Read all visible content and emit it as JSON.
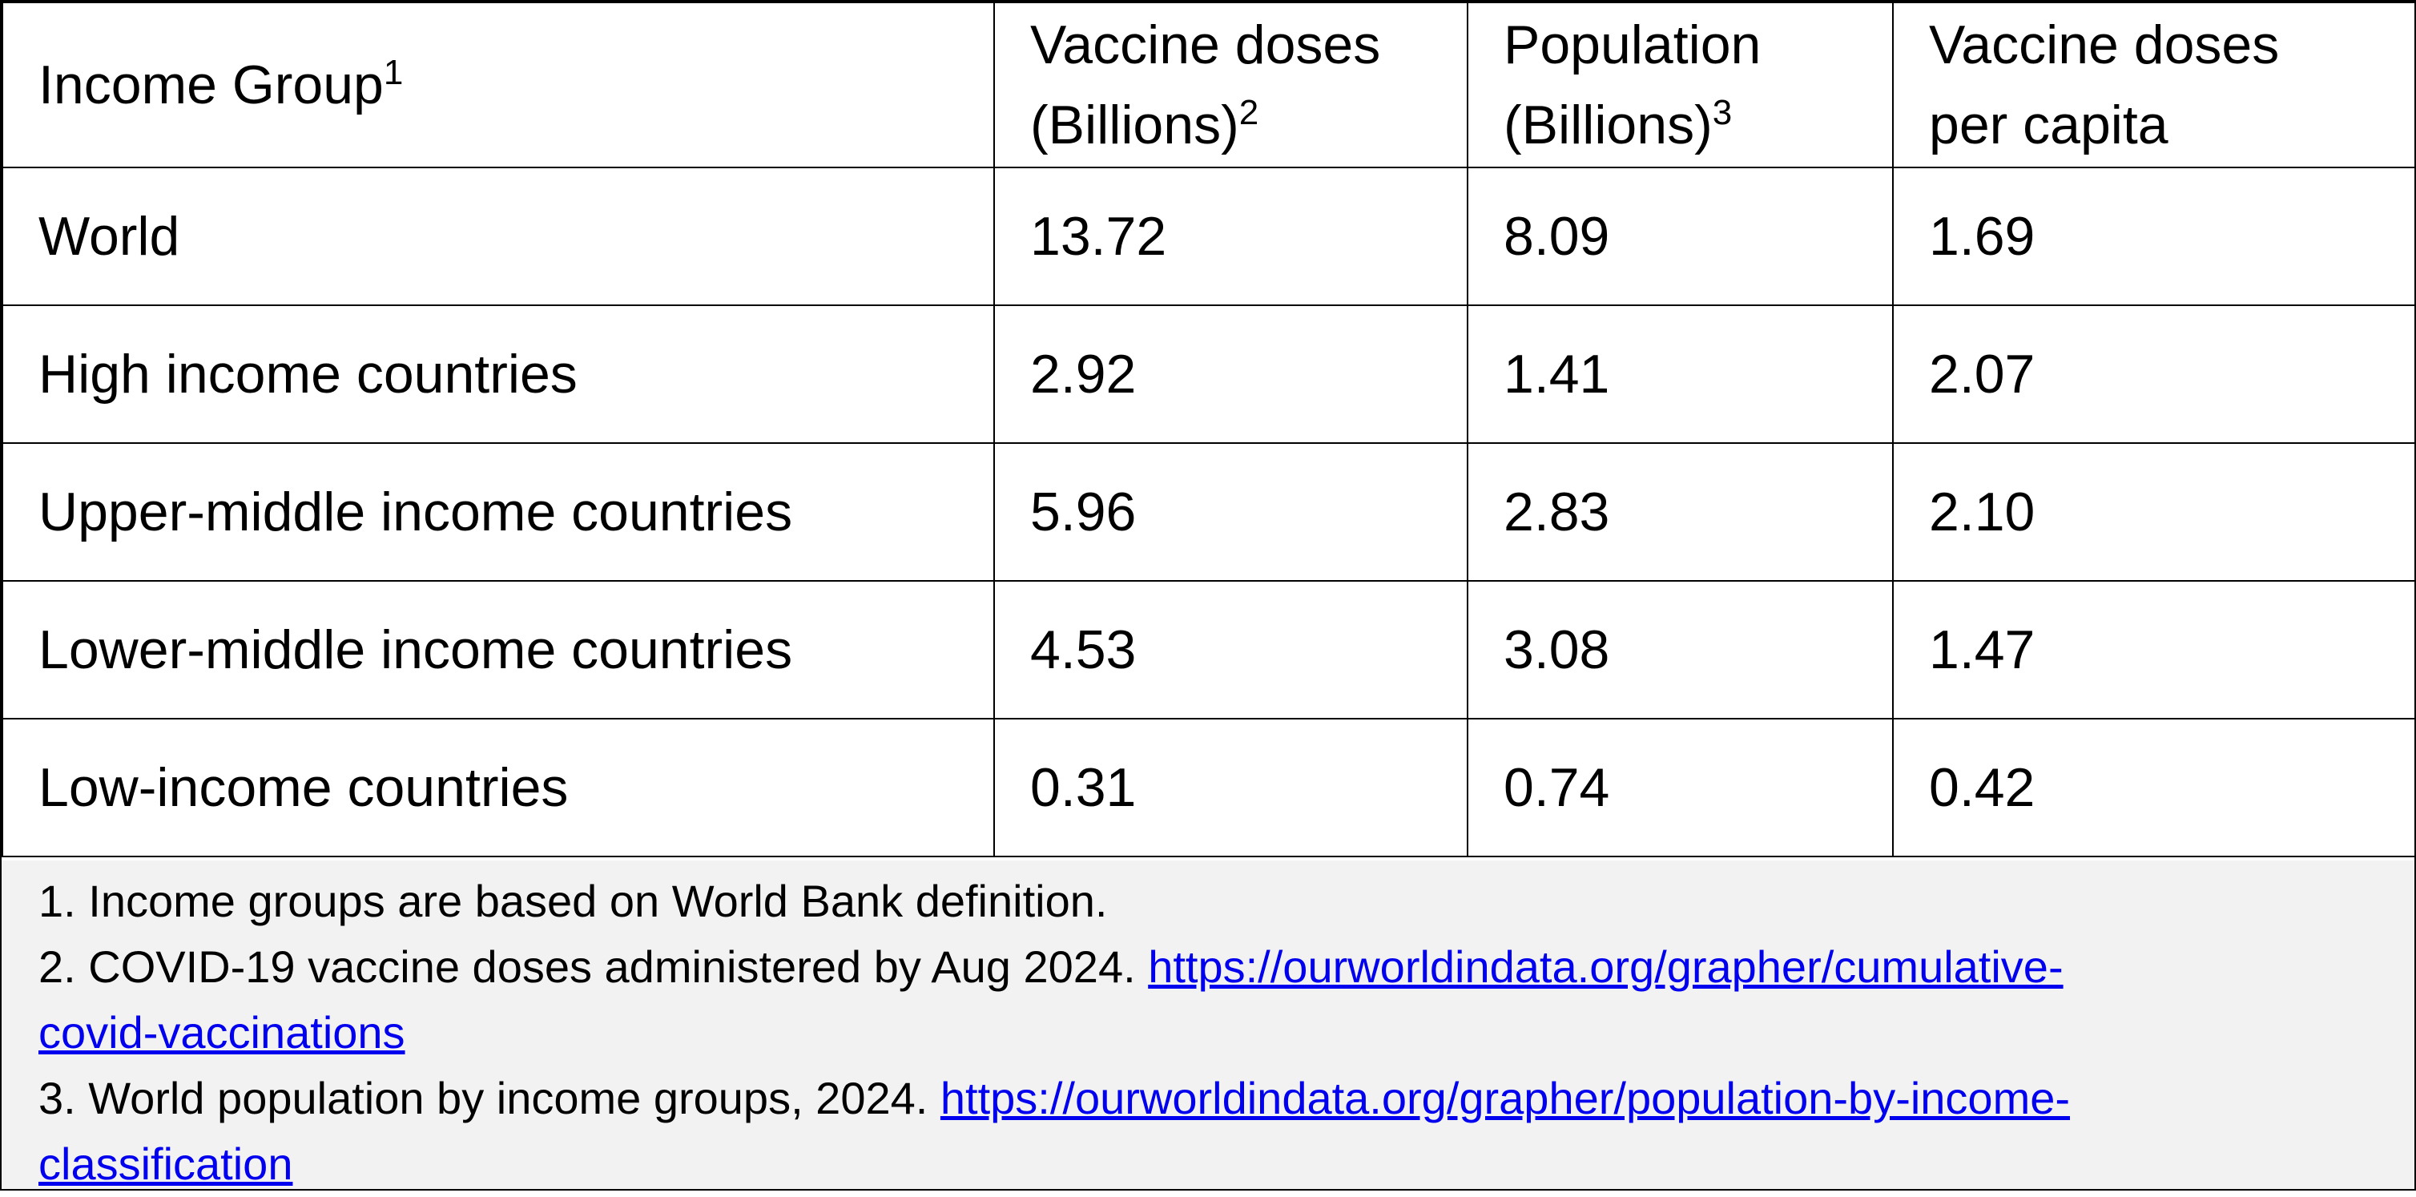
{
  "table": {
    "headers": [
      {
        "line1": "Income Group",
        "line2": "",
        "sup": "1"
      },
      {
        "line1": "Vaccine doses",
        "line2": "(Billions)",
        "sup": "2"
      },
      {
        "line1": "Population",
        "line2": "(Billions)",
        "sup": "3"
      },
      {
        "line1": "Vaccine doses",
        "line2": "per capita",
        "sup": ""
      }
    ],
    "rows": [
      [
        "World",
        "13.72",
        "8.09",
        "1.69"
      ],
      [
        "High income countries",
        "2.92",
        "1.41",
        "2.07"
      ],
      [
        "Upper-middle income countries",
        "5.96",
        "2.83",
        "2.10"
      ],
      [
        "Lower-middle income countries",
        "4.53",
        "3.08",
        "1.47"
      ],
      [
        "Low-income countries",
        "0.31",
        "0.74",
        "0.42"
      ]
    ]
  },
  "footnotes": [
    {
      "text": "1. Income groups are based on World Bank definition.",
      "link_line1": "",
      "link_line2": ""
    },
    {
      "text": "2. COVID-19 vaccine doses administered by Aug 2024. ",
      "link_line1": "https://ourworldindata.org/grapher/cumulative-",
      "link_line2": "covid-vaccinations"
    },
    {
      "text": "3. World population by income groups, 2024. ",
      "link_line1": "https://ourworldindata.org/grapher/population-by-income-",
      "link_line2": "classification"
    }
  ],
  "colors": {
    "border": "#000000",
    "notes_background": "#f2f2f2",
    "link": "#0000ee"
  }
}
